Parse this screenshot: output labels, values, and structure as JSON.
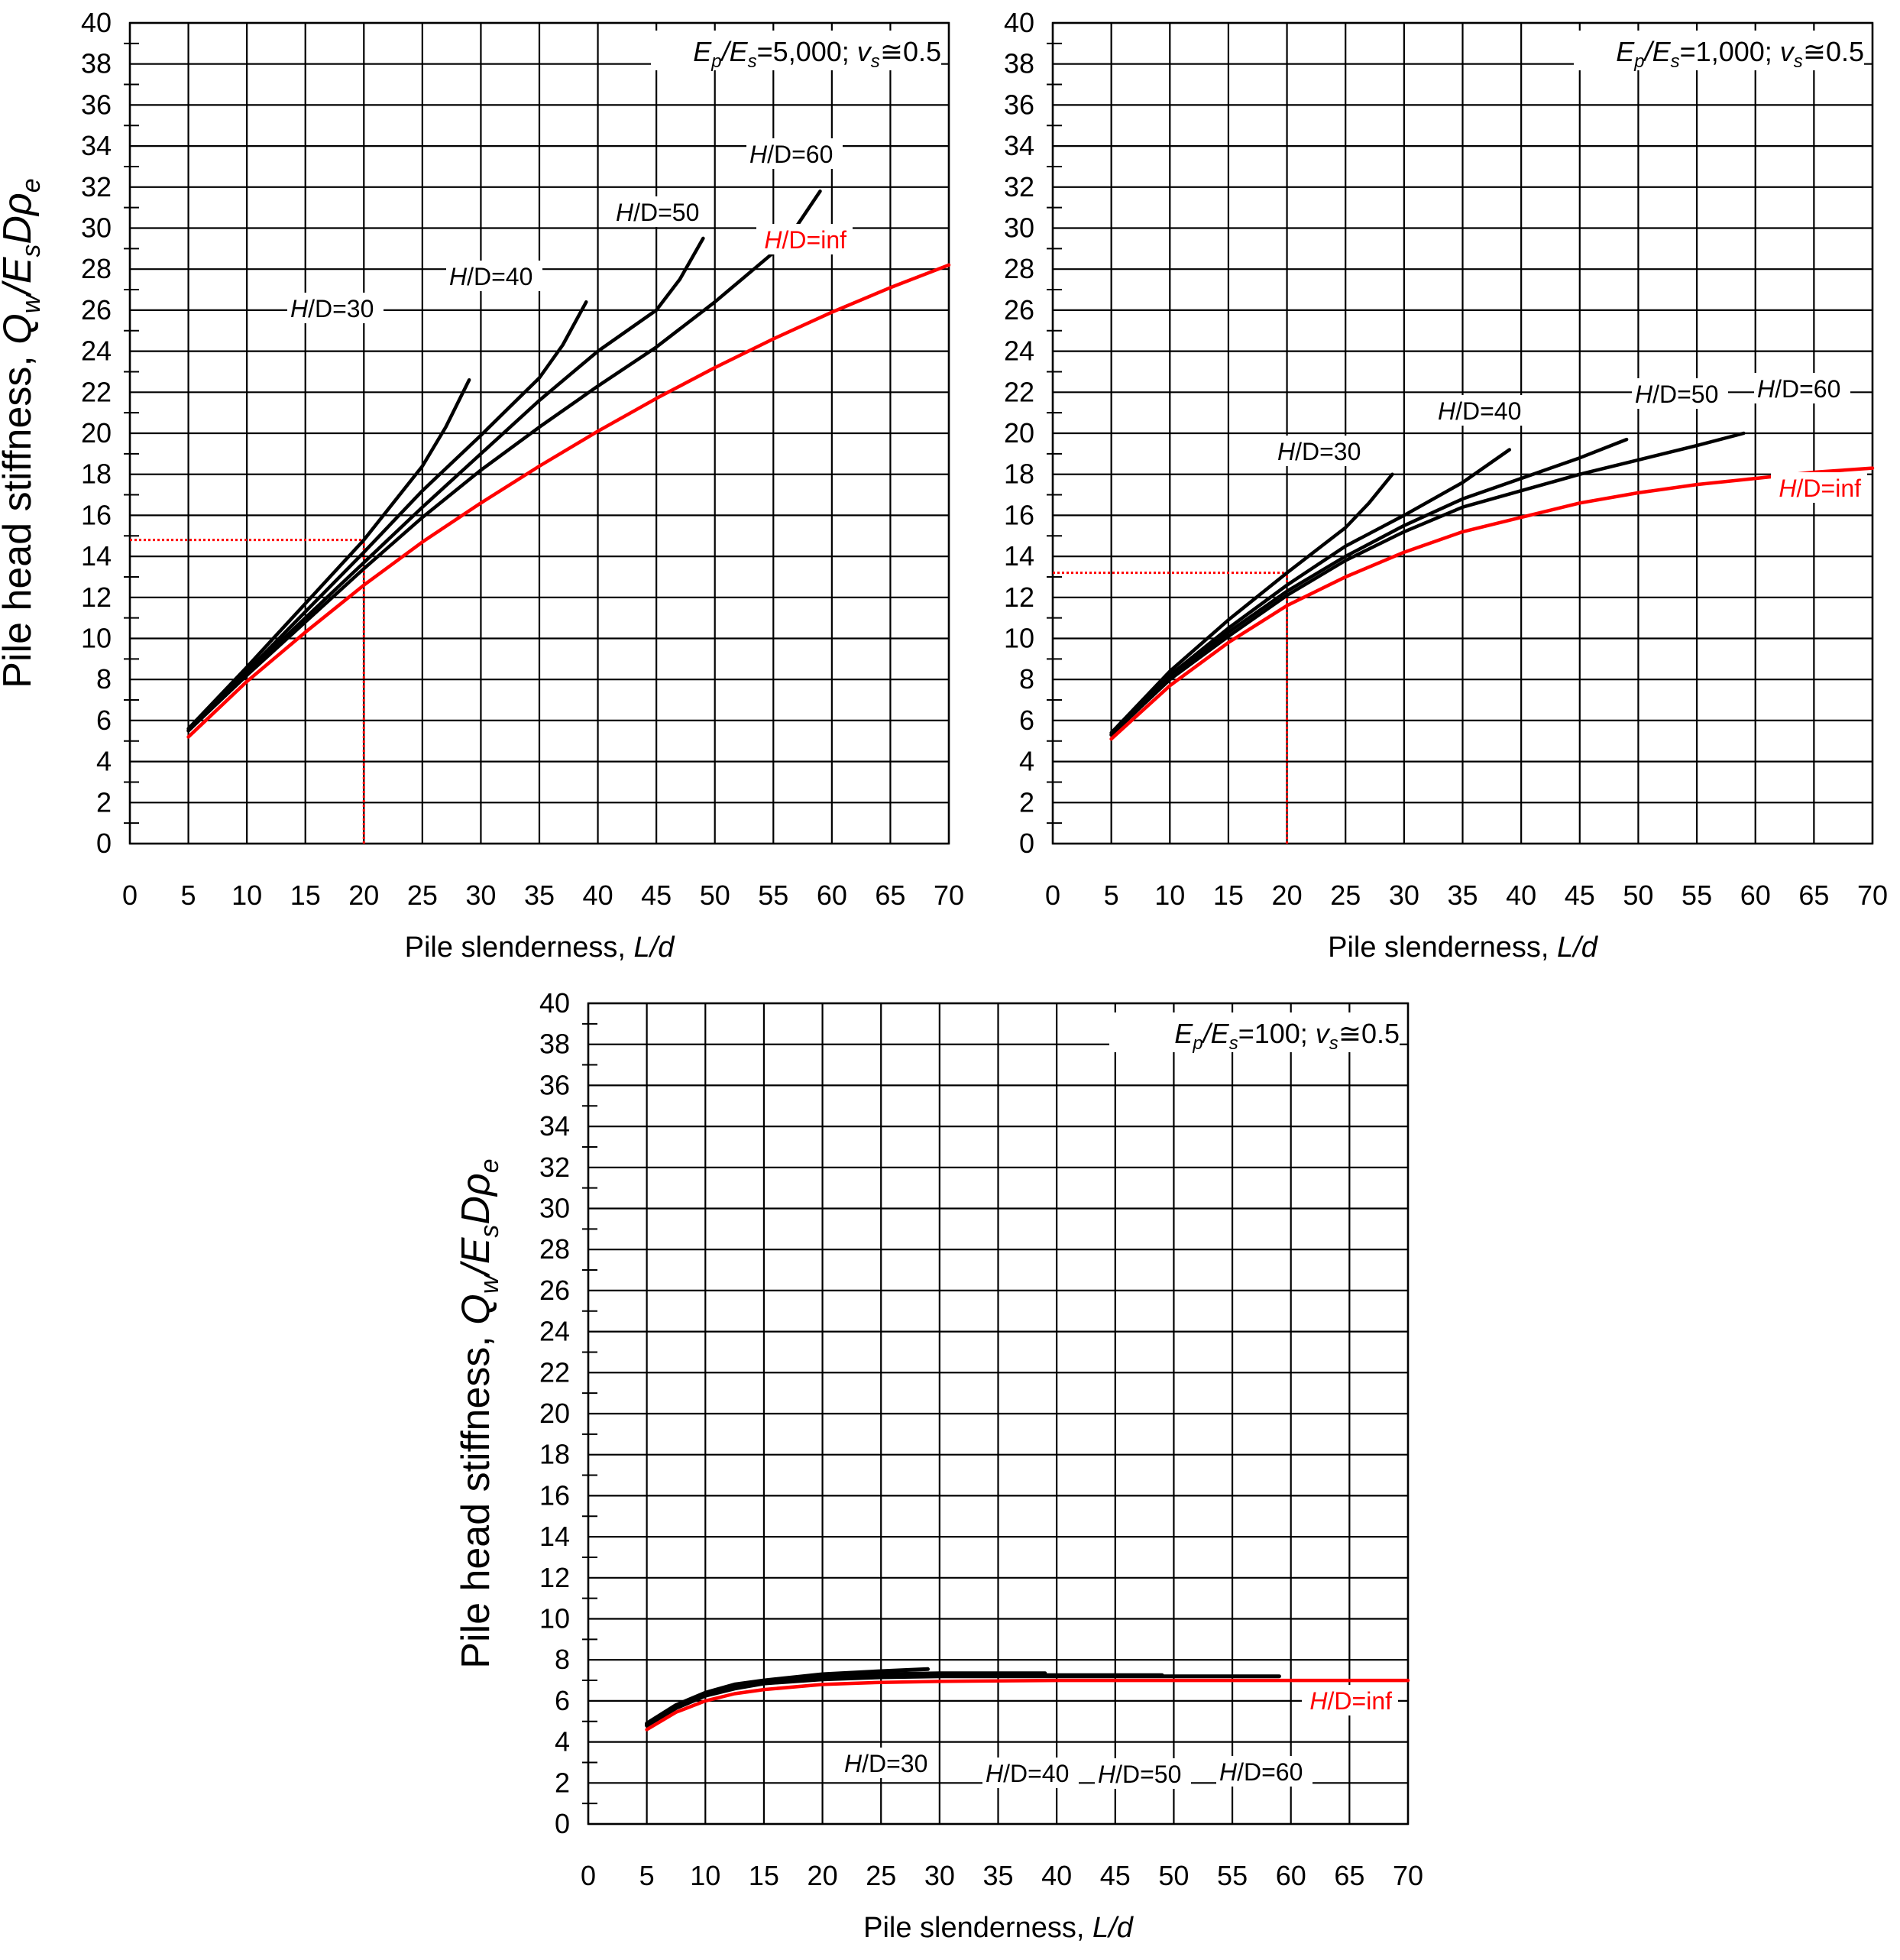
{
  "chart_data": [
    {
      "type": "line",
      "annotation": {
        "ratio_prefix": "E",
        "ratio_sub1": "p",
        "ratio_slash": "/E",
        "ratio_sub2": "s",
        "ratio_value": "=5,000; ",
        "nu": "v",
        "nu_sub": "s",
        "nu_value": "≅0.5"
      },
      "ylabel": {
        "main": "Pile head stiffness, ",
        "q": "Q",
        "q_sub": "w",
        "slash": "/E",
        "es_sub": "s",
        "d": "Dρ",
        "rho_sub": "e"
      },
      "xlabel": {
        "main": "Pile slenderness, ",
        "italic": "L/d"
      },
      "xlim": [
        0,
        70
      ],
      "ylim": [
        0,
        40
      ],
      "xticks": [
        "0",
        "5",
        "10",
        "15",
        "20",
        "25",
        "30",
        "35",
        "40",
        "45",
        "50",
        "55",
        "60",
        "65",
        "70"
      ],
      "yticks": [
        "0",
        "2",
        "4",
        "6",
        "8",
        "10",
        "12",
        "14",
        "16",
        "18",
        "20",
        "22",
        "24",
        "26",
        "28",
        "30",
        "32",
        "34",
        "36",
        "38",
        "40"
      ],
      "grid": true,
      "series": [
        {
          "name": "H/D=30",
          "label_h": "H",
          "label_rest": "/D=30",
          "color": "#000000",
          "x": [
            5,
            10,
            15,
            20,
            25,
            27,
            29
          ],
          "y": [
            5.6,
            8.6,
            11.7,
            14.8,
            18.4,
            20.3,
            22.6
          ]
        },
        {
          "name": "H/D=40",
          "label_h": "H",
          "label_rest": "/D=40",
          "color": "#000000",
          "x": [
            5,
            10,
            15,
            20,
            25,
            30,
            35,
            37,
            39
          ],
          "y": [
            5.5,
            8.4,
            11.3,
            14.2,
            17.2,
            19.9,
            22.7,
            24.3,
            26.4
          ]
        },
        {
          "name": "H/D=50",
          "label_h": "H",
          "label_rest": "/D=50",
          "color": "#000000",
          "x": [
            5,
            10,
            15,
            20,
            25,
            30,
            35,
            40,
            45,
            47,
            49
          ],
          "y": [
            5.5,
            8.3,
            11.0,
            13.7,
            16.4,
            19.0,
            21.6,
            24.0,
            26.0,
            27.5,
            29.5
          ]
        },
        {
          "name": "H/D=60",
          "label_h": "H",
          "label_rest": "/D=60",
          "color": "#000000",
          "x": [
            5,
            10,
            15,
            20,
            25,
            30,
            35,
            40,
            45,
            50,
            55,
            57,
            59
          ],
          "y": [
            5.5,
            8.2,
            10.8,
            13.4,
            15.9,
            18.2,
            20.3,
            22.3,
            24.2,
            26.4,
            28.8,
            30.1,
            31.8
          ]
        },
        {
          "name": "H/D=inf",
          "label_h": "H",
          "label_rest": "/D=inf",
          "color": "#ff0000",
          "x": [
            5,
            10,
            15,
            20,
            25,
            30,
            35,
            40,
            45,
            50,
            55,
            60,
            65,
            70
          ],
          "y": [
            5.2,
            7.9,
            10.3,
            12.6,
            14.7,
            16.6,
            18.4,
            20.1,
            21.7,
            23.2,
            24.6,
            25.9,
            27.1,
            28.2
          ]
        }
      ],
      "guide": {
        "x": 20,
        "y": 14.8,
        "color": "#ff0000"
      }
    },
    {
      "type": "line",
      "annotation": {
        "ratio_prefix": "E",
        "ratio_sub1": "p",
        "ratio_slash": "/E",
        "ratio_sub2": "s",
        "ratio_value": "=1,000; ",
        "nu": "v",
        "nu_sub": "s",
        "nu_value": "≅0.5"
      },
      "ylabel": null,
      "xlabel": {
        "main": "Pile slenderness, ",
        "italic": "L/d"
      },
      "xlim": [
        0,
        70
      ],
      "ylim": [
        0,
        40
      ],
      "xticks": [
        "0",
        "5",
        "10",
        "15",
        "20",
        "25",
        "30",
        "35",
        "40",
        "45",
        "50",
        "55",
        "60",
        "65",
        "70"
      ],
      "yticks": [
        "0",
        "2",
        "4",
        "6",
        "8",
        "10",
        "12",
        "14",
        "16",
        "18",
        "20",
        "22",
        "24",
        "26",
        "28",
        "30",
        "32",
        "34",
        "36",
        "38",
        "40"
      ],
      "grid": true,
      "series": [
        {
          "name": "H/D=30",
          "label_h": "H",
          "label_rest": "/D=30",
          "color": "#000000",
          "x": [
            5,
            10,
            15,
            20,
            25,
            27,
            29
          ],
          "y": [
            5.4,
            8.4,
            10.9,
            13.2,
            15.4,
            16.6,
            18.0
          ]
        },
        {
          "name": "H/D=40",
          "label_h": "H",
          "label_rest": "/D=40",
          "color": "#000000",
          "x": [
            5,
            10,
            15,
            20,
            25,
            30,
            35,
            39
          ],
          "y": [
            5.3,
            8.2,
            10.5,
            12.6,
            14.5,
            16.0,
            17.6,
            19.2
          ]
        },
        {
          "name": "H/D=50",
          "label_h": "H",
          "label_rest": "/D=50",
          "color": "#000000",
          "x": [
            5,
            10,
            15,
            20,
            25,
            30,
            35,
            40,
            45,
            49
          ],
          "y": [
            5.3,
            8.0,
            10.3,
            12.3,
            14.0,
            15.5,
            16.8,
            17.8,
            18.8,
            19.7
          ]
        },
        {
          "name": "H/D=60",
          "label_h": "H",
          "label_rest": "/D=60",
          "color": "#000000",
          "x": [
            5,
            10,
            15,
            20,
            25,
            30,
            35,
            40,
            45,
            50,
            55,
            59
          ],
          "y": [
            5.3,
            8.0,
            10.1,
            12.1,
            13.8,
            15.2,
            16.4,
            17.2,
            18.0,
            18.7,
            19.4,
            20.0
          ]
        },
        {
          "name": "H/D=inf",
          "label_h": "H",
          "label_rest": "/D=inf",
          "color": "#ff0000",
          "x": [
            5,
            10,
            15,
            20,
            25,
            30,
            35,
            40,
            45,
            50,
            55,
            60,
            65,
            70
          ],
          "y": [
            5.1,
            7.7,
            9.8,
            11.6,
            13.0,
            14.2,
            15.2,
            15.9,
            16.6,
            17.1,
            17.5,
            17.8,
            18.1,
            18.3
          ]
        }
      ],
      "guide": {
        "x": 20,
        "y": 13.2,
        "color": "#ff0000"
      }
    },
    {
      "type": "line",
      "annotation": {
        "ratio_prefix": "E",
        "ratio_sub1": "p",
        "ratio_slash": "/E",
        "ratio_sub2": "s",
        "ratio_value": "=100; ",
        "nu": "v",
        "nu_sub": "s",
        "nu_value": "≅0.5"
      },
      "ylabel": {
        "main": "Pile head stiffness, ",
        "q": "Q",
        "q_sub": "w",
        "slash": "/E",
        "es_sub": "s",
        "d": "Dρ",
        "rho_sub": "e"
      },
      "xlabel": {
        "main": "Pile slenderness, ",
        "italic": "L/d"
      },
      "xlim": [
        0,
        70
      ],
      "ylim": [
        0,
        40
      ],
      "xticks": [
        "0",
        "5",
        "10",
        "15",
        "20",
        "25",
        "30",
        "35",
        "40",
        "45",
        "50",
        "55",
        "60",
        "65",
        "70"
      ],
      "yticks": [
        "0",
        "2",
        "4",
        "6",
        "8",
        "10",
        "12",
        "14",
        "16",
        "18",
        "20",
        "22",
        "24",
        "26",
        "28",
        "30",
        "32",
        "34",
        "36",
        "38",
        "40"
      ],
      "grid": true,
      "series": [
        {
          "name": "H/D=30",
          "label_h": "H",
          "label_rest": "/D=30",
          "color": "#000000",
          "x": [
            5,
            7.5,
            10,
            12.5,
            15,
            20,
            25,
            29
          ],
          "y": [
            4.9,
            5.8,
            6.4,
            6.8,
            7.0,
            7.3,
            7.45,
            7.55
          ]
        },
        {
          "name": "H/D=40",
          "label_h": "H",
          "label_rest": "/D=40",
          "color": "#000000",
          "x": [
            5,
            7.5,
            10,
            12.5,
            15,
            20,
            25,
            30,
            35,
            39
          ],
          "y": [
            4.85,
            5.75,
            6.35,
            6.7,
            6.95,
            7.2,
            7.3,
            7.35,
            7.35,
            7.35
          ]
        },
        {
          "name": "H/D=50",
          "label_h": "H",
          "label_rest": "/D=50",
          "color": "#000000",
          "x": [
            5,
            7.5,
            10,
            12.5,
            15,
            20,
            25,
            30,
            40,
            49
          ],
          "y": [
            4.8,
            5.7,
            6.3,
            6.65,
            6.9,
            7.1,
            7.2,
            7.25,
            7.25,
            7.25
          ]
        },
        {
          "name": "H/D=60",
          "label_h": "H",
          "label_rest": "/D=60",
          "color": "#000000",
          "x": [
            5,
            7.5,
            10,
            12.5,
            15,
            20,
            25,
            30,
            40,
            50,
            59
          ],
          "y": [
            4.8,
            5.65,
            6.25,
            6.6,
            6.85,
            7.05,
            7.15,
            7.2,
            7.2,
            7.2,
            7.2
          ]
        },
        {
          "name": "H/D=inf",
          "label_h": "H",
          "label_rest": "/D=inf",
          "color": "#ff0000",
          "x": [
            5,
            7.5,
            10,
            12.5,
            15,
            20,
            25,
            30,
            40,
            50,
            60,
            70
          ],
          "y": [
            4.6,
            5.45,
            6.0,
            6.35,
            6.55,
            6.8,
            6.9,
            6.95,
            7.0,
            7.0,
            7.0,
            7.0
          ]
        }
      ],
      "guide": null
    }
  ]
}
